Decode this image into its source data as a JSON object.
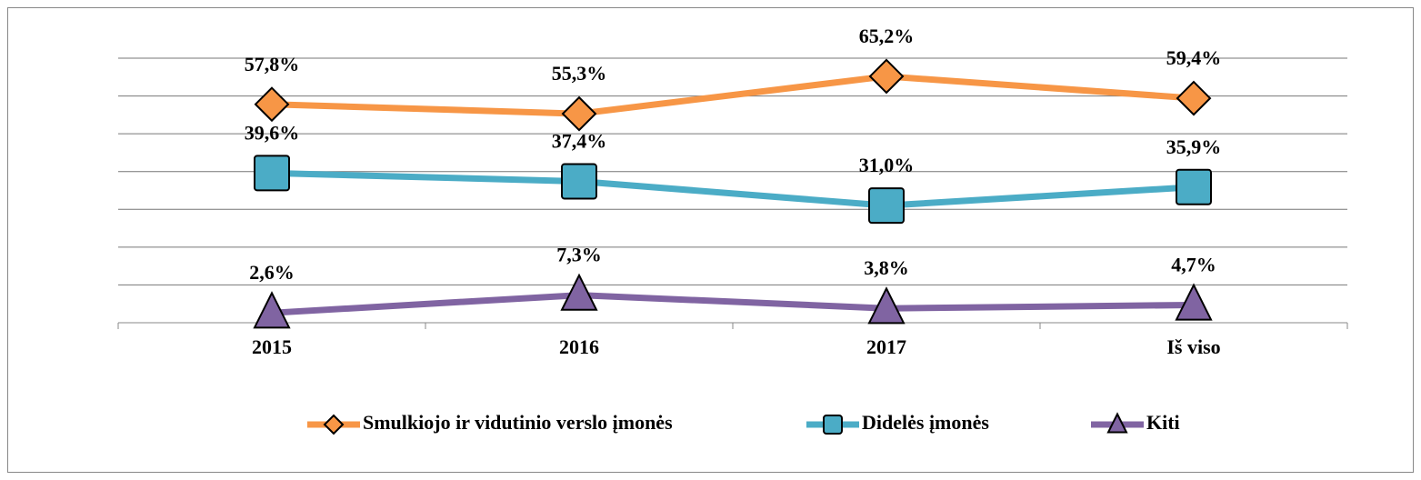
{
  "chart_data": {
    "type": "line",
    "categories": [
      "2015",
      "2016",
      "2017",
      "Iš viso"
    ],
    "series": [
      {
        "name": "Smulkiojo ir vidutinio verslo įmonės",
        "color": "#f79646",
        "marker": "diamond",
        "values": [
          57.8,
          55.3,
          65.2,
          59.4
        ],
        "value_labels": [
          "57,8%",
          "55,3%",
          "65,2%",
          "59,4%"
        ]
      },
      {
        "name": "Didelės įmonės",
        "color": "#4bacc6",
        "marker": "square",
        "values": [
          39.6,
          37.4,
          31.0,
          35.9
        ],
        "value_labels": [
          "39,6%",
          "37,4%",
          "31,0%",
          "35,9%"
        ]
      },
      {
        "name": "Kiti",
        "color": "#8064a2",
        "marker": "triangle",
        "values": [
          2.6,
          7.3,
          3.8,
          4.7
        ],
        "value_labels": [
          "2,6%",
          "7,3%",
          "3,8%",
          "4,7%"
        ]
      }
    ],
    "ylim": [
      0,
      70
    ],
    "yticks": [
      0,
      10,
      20,
      30,
      40,
      50,
      60,
      70
    ],
    "grid": true,
    "legend": "bottom"
  }
}
